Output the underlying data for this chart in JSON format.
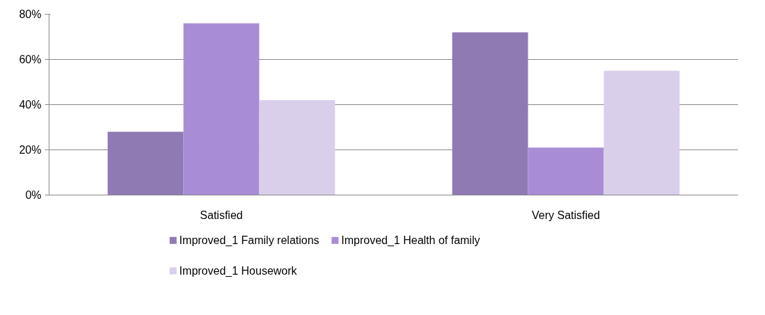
{
  "chart_data": {
    "type": "bar",
    "categories": [
      "Satisfied",
      "Very Satisfied"
    ],
    "series": [
      {
        "name": "Improved_1 Family relations",
        "color": "#8f7ab4",
        "values": [
          28,
          72
        ]
      },
      {
        "name": "Improved_1 Health of family",
        "color": "#a88dd6",
        "values": [
          76,
          21
        ]
      },
      {
        "name": "Improved_1 Housework",
        "color": "#d9cfeb",
        "values": [
          42,
          55
        ]
      }
    ],
    "ylim": [
      0,
      80
    ],
    "yticks": [
      {
        "value": 0,
        "label": "0%"
      },
      {
        "value": 20,
        "label": "20%"
      },
      {
        "value": 40,
        "label": "40%"
      },
      {
        "value": 60,
        "label": "60%"
      },
      {
        "value": 80,
        "label": "80%"
      }
    ],
    "grid": "y",
    "legend": "bottom"
  }
}
